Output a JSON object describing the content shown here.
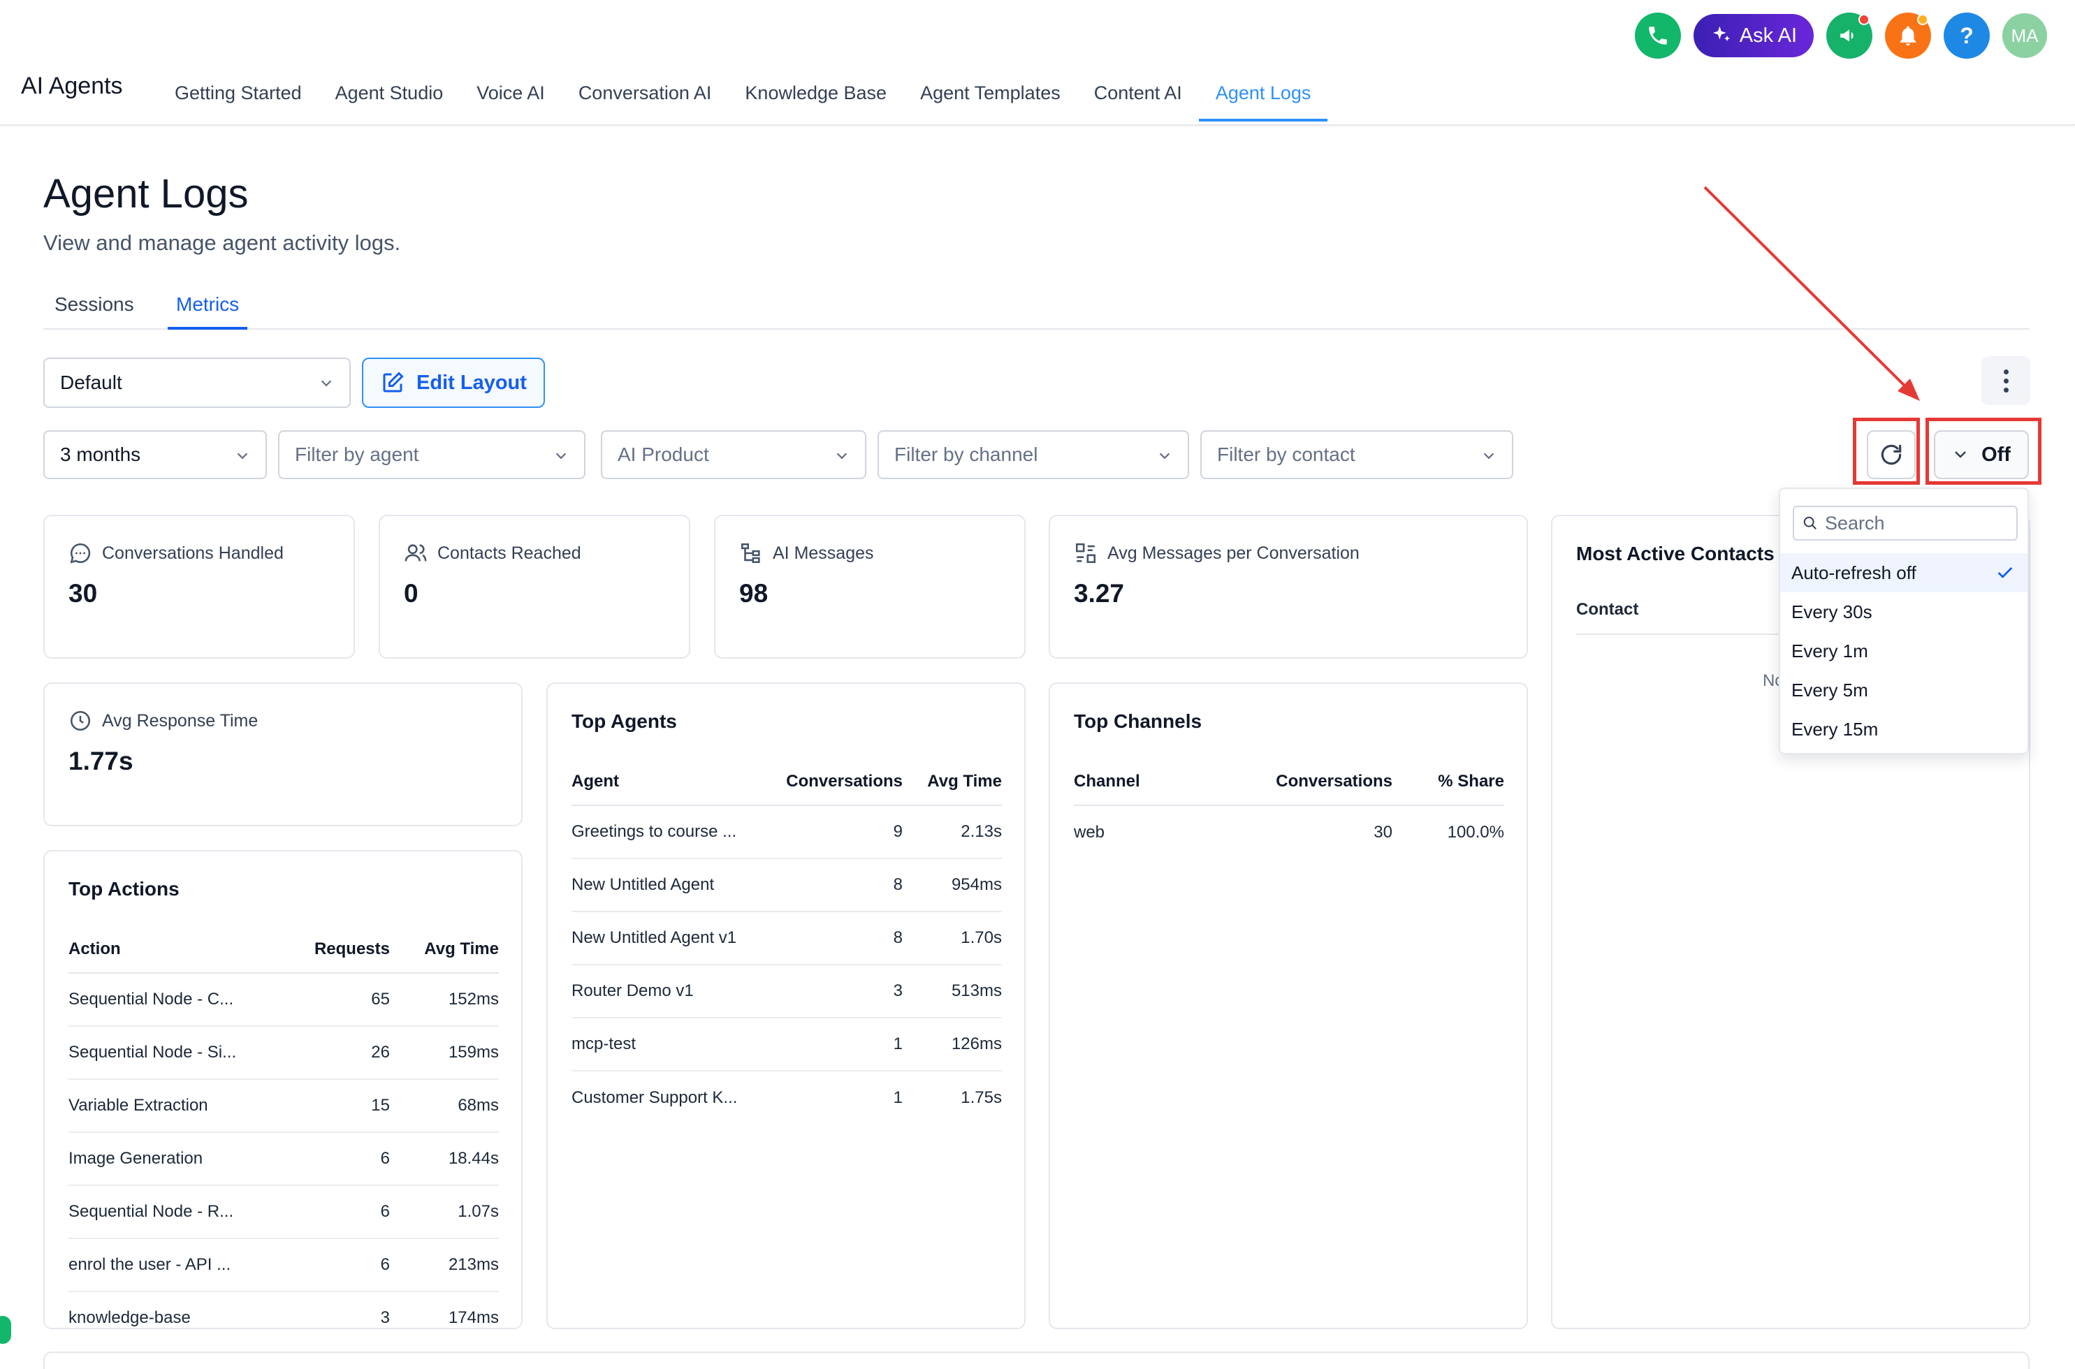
{
  "header": {
    "app_title": "AI Agents",
    "nav": [
      "Getting Started",
      "Agent Studio",
      "Voice AI",
      "Conversation AI",
      "Knowledge Base",
      "Agent Templates",
      "Content AI",
      "Agent Logs"
    ],
    "active_nav": "Agent Logs",
    "ask_ai_label": "Ask AI",
    "help_label": "?",
    "avatar_initials": "MA"
  },
  "page": {
    "title": "Agent Logs",
    "subtitle": "View and manage agent activity logs.",
    "tabs": [
      "Sessions",
      "Metrics"
    ],
    "active_tab": "Metrics"
  },
  "toolbar": {
    "layout_select": "Default",
    "edit_layout_label": "Edit Layout",
    "auto_refresh_value": "Off"
  },
  "filters": {
    "period": "3 months",
    "agent_placeholder": "Filter by agent",
    "product_placeholder": "AI Product",
    "channel_placeholder": "Filter by channel",
    "contact_placeholder": "Filter by contact"
  },
  "stats": {
    "conversations": {
      "label": "Conversations Handled",
      "value": "30"
    },
    "contacts": {
      "label": "Contacts Reached",
      "value": "0"
    },
    "messages": {
      "label": "AI Messages",
      "value": "98"
    },
    "avg_messages": {
      "label": "Avg Messages per Conversation",
      "value": "3.27"
    },
    "response_time": {
      "label": "Avg Response Time",
      "value": "1.77s"
    }
  },
  "top_agents": {
    "title": "Top Agents",
    "columns": [
      "Agent",
      "Conversations",
      "Avg Time"
    ],
    "rows": [
      [
        "Greetings to course ...",
        "9",
        "2.13s"
      ],
      [
        "New Untitled Agent",
        "8",
        "954ms"
      ],
      [
        "New Untitled Agent v1",
        "8",
        "1.70s"
      ],
      [
        "Router Demo v1",
        "3",
        "513ms"
      ],
      [
        "mcp-test",
        "1",
        "126ms"
      ],
      [
        "Customer Support K...",
        "1",
        "1.75s"
      ]
    ]
  },
  "top_channels": {
    "title": "Top Channels",
    "columns": [
      "Channel",
      "Conversations",
      "% Share"
    ],
    "rows": [
      [
        "web",
        "30",
        "100.0%"
      ]
    ]
  },
  "top_actions": {
    "title": "Top Actions",
    "columns": [
      "Action",
      "Requests",
      "Avg Time"
    ],
    "rows": [
      [
        "Sequential Node - C...",
        "65",
        "152ms"
      ],
      [
        "Sequential Node - Si...",
        "26",
        "159ms"
      ],
      [
        "Variable Extraction",
        "15",
        "68ms"
      ],
      [
        "Image Generation",
        "6",
        "18.44s"
      ],
      [
        "Sequential Node - R...",
        "6",
        "1.07s"
      ],
      [
        "enrol the user - API ...",
        "6",
        "213ms"
      ],
      [
        "knowledge-base",
        "3",
        "174ms"
      ]
    ]
  },
  "most_active_contacts": {
    "title": "Most Active Contacts",
    "column": "Contact",
    "empty_text": "No data"
  },
  "refresh_dropdown": {
    "search_placeholder": "Search",
    "options": [
      "Auto-refresh off",
      "Every 30s",
      "Every 1m",
      "Every 5m",
      "Every 15m"
    ],
    "selected": "Auto-refresh off"
  },
  "colors": {
    "accent": "#155eef",
    "highlight": "#e53935"
  }
}
